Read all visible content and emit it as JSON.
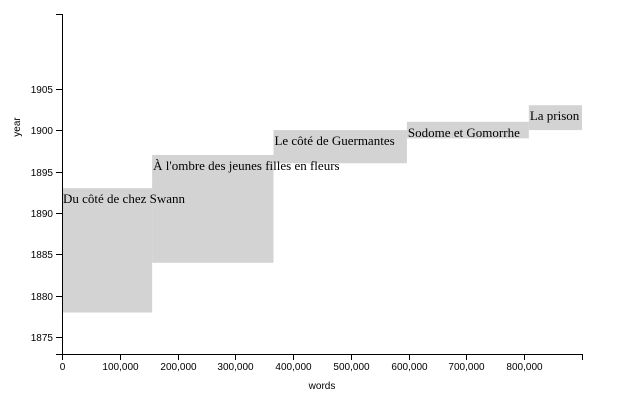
{
  "chart_data": {
    "type": "bar",
    "xlabel": "words",
    "ylabel": "year",
    "xlim": [
      0,
      900000
    ],
    "ylim": [
      1873,
      1914
    ],
    "x_ticks": [
      0,
      100000,
      200000,
      300000,
      400000,
      500000,
      600000,
      700000,
      800000
    ],
    "x_tick_labels": [
      "0",
      "100,000",
      "200,000",
      "300,000",
      "400,000",
      "500,000",
      "600,000",
      "700,000",
      "800,000"
    ],
    "y_ticks": [
      1875,
      1880,
      1885,
      1890,
      1895,
      1900,
      1905
    ],
    "y_tick_labels": [
      "1875",
      "1880",
      "1885",
      "1890",
      "1895",
      "1900",
      "1905"
    ],
    "bars": [
      {
        "label": "Du côté de chez Swann",
        "x_start": 0,
        "x_end": 156000,
        "y_start": 1878,
        "y_end": 1893
      },
      {
        "label": "À l'ombre des jeunes filles en fleurs",
        "x_start": 156000,
        "x_end": 366000,
        "y_start": 1884,
        "y_end": 1897
      },
      {
        "label": "Le côté de Guermantes",
        "x_start": 366000,
        "x_end": 597000,
        "y_start": 1896,
        "y_end": 1900
      },
      {
        "label": "Sodome et Gomorrhe",
        "x_start": 597000,
        "x_end": 808000,
        "y_start": 1899,
        "y_end": 1901
      },
      {
        "label": "La prison",
        "x_start": 808000,
        "x_end": 900000,
        "y_start": 1900,
        "y_end": 1903
      }
    ]
  }
}
